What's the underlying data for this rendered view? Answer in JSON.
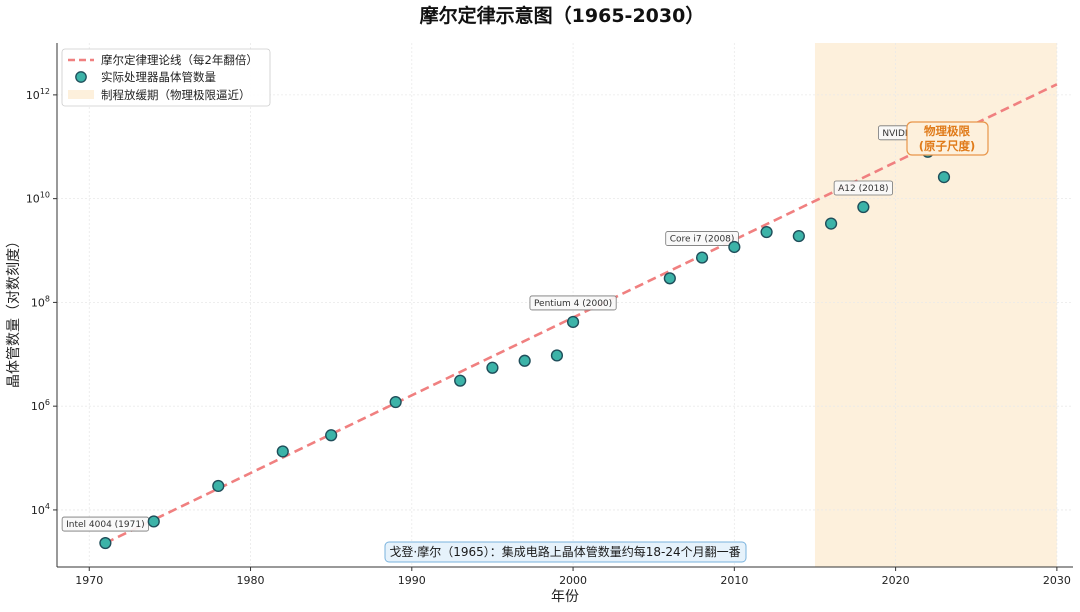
{
  "chart_data": {
    "type": "scatter",
    "title": "摩尔定律示意图（1965-2030）",
    "xlabel": "年份",
    "ylabel": "晶体管数量（对数刻度）",
    "xlim": [
      1968,
      2031
    ],
    "ylim_log10": [
      2.9,
      13.0
    ],
    "y_scale": "log",
    "grid": true,
    "legend_position": "top-left",
    "x_ticks": [
      "1970",
      "1980",
      "1990",
      "2000",
      "2010",
      "2020",
      "2030"
    ],
    "x_tick_values": [
      1970,
      1980,
      1990,
      2000,
      2010,
      2020,
      2030
    ],
    "y_ticks": [
      {
        "value": 4,
        "base": "10",
        "exp": "4"
      },
      {
        "value": 6,
        "base": "10",
        "exp": "6"
      },
      {
        "value": 8,
        "base": "10",
        "exp": "8"
      },
      {
        "value": 10,
        "base": "10",
        "exp": "10"
      },
      {
        "value": 12,
        "base": "10",
        "exp": "12"
      }
    ],
    "trend_line": {
      "name": "摩尔定律理论线（每2年翻倍）",
      "color": "#f08080",
      "x": [
        1971,
        2030
      ],
      "y": [
        2300,
        1600000000000
      ]
    },
    "series": [
      {
        "name": "实际处理器晶体管数量",
        "color": "#3cb3a8",
        "x": [
          1971,
          1974,
          1978,
          1982,
          1985,
          1989,
          1993,
          1995,
          1997,
          1999,
          2000,
          2006,
          2008,
          2010,
          2012,
          2014,
          2016,
          2018,
          2022,
          2022,
          2023
        ],
        "y": [
          2300,
          6000,
          29000,
          134000,
          275000,
          1200000,
          3100000,
          5500000,
          7500000,
          9500000,
          42000000,
          291000000,
          731000000,
          1170000000,
          2270000000,
          1900000000,
          3300000000,
          6900000000,
          80000000000,
          114000000000,
          26000000000
        ]
      }
    ],
    "shaded_region": {
      "name": "制程放缓期（物理极限逼近）",
      "x": [
        2015,
        2030
      ],
      "color": "#fdf0dc"
    },
    "annotations": [
      {
        "text": "Intel 4004 (1971)",
        "x": 1971,
        "y": 2300
      },
      {
        "text": "Pentium 4 (2000)",
        "x": 2000,
        "y": 42000000
      },
      {
        "text": "Core i7 (2008)",
        "x": 2008,
        "y": 731000000
      },
      {
        "text": "A12 (2018)",
        "x": 2018,
        "y": 6900000000
      },
      {
        "text": "NVIDIA H100 (2022)",
        "x": 2022,
        "y": 80000000000
      }
    ],
    "limit_label": [
      "物理极限",
      "(原子尺度)"
    ],
    "footnote": "戈登·摩尔（1965）：集成电路上晶体管数量约每18-24个月翻一番"
  }
}
